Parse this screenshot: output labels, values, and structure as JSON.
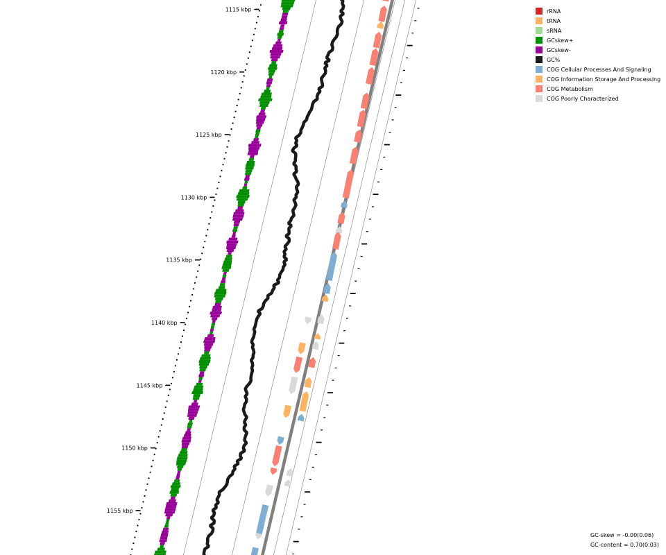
{
  "ticks": [
    {
      "label": "1115 kbp",
      "pos": 1115
    },
    {
      "label": "1120 kbp",
      "pos": 1120
    },
    {
      "label": "1125 kbp",
      "pos": 1125
    },
    {
      "label": "1130 kbp",
      "pos": 1130
    },
    {
      "label": "1135 kbp",
      "pos": 1135
    },
    {
      "label": "1140 kbp",
      "pos": 1140
    },
    {
      "label": "1145 kbp",
      "pos": 1145
    },
    {
      "label": "1150 kbp",
      "pos": 1150
    },
    {
      "label": "1155 kbp",
      "pos": 1155
    }
  ],
  "legend": [
    {
      "name": "rRNA",
      "color": "#d62728",
      "key": "rrna"
    },
    {
      "name": "tRNA",
      "color": "#fdb462",
      "key": "trna"
    },
    {
      "name": "sRNA",
      "color": "#a1d99b",
      "key": "srna"
    },
    {
      "name": "GCskew+",
      "color": "#009000",
      "key": "gcskew-pos"
    },
    {
      "name": "GCskew-",
      "color": "#990099",
      "key": "gcskew-neg"
    },
    {
      "name": "GC%",
      "color": "#1a1a1a",
      "key": "gc-content"
    },
    {
      "name": "COG Cellular Processes And Signaling",
      "color": "#7eaed3",
      "key": "cog-cellular"
    },
    {
      "name": "COG Information Storage And Processing",
      "color": "#fdb462",
      "key": "cog-information"
    },
    {
      "name": "COG Metabolism",
      "color": "#fa8072",
      "key": "cog-metabolism"
    },
    {
      "name": "COG Poorly Characterized",
      "color": "#d9d9d9",
      "key": "cog-poorly"
    }
  ],
  "stats": {
    "gc_skew": "GC-skew = -0.00(0.06)",
    "gc_content": "GC-content = 0.70(0.03)"
  },
  "features": {
    "outer": [
      {
        "t": 0.0,
        "len": 0.014,
        "cog": "cog-metabolism"
      },
      {
        "t": 0.022,
        "len": 0.028,
        "cog": "cog-metabolism"
      },
      {
        "t": 0.05,
        "len": 0.012,
        "cog": "cog-information"
      },
      {
        "t": 0.068,
        "len": 0.028,
        "cog": "cog-metabolism"
      },
      {
        "t": 0.097,
        "len": 0.03,
        "cog": "cog-metabolism"
      },
      {
        "t": 0.13,
        "len": 0.03,
        "cog": "cog-metabolism"
      },
      {
        "t": 0.175,
        "len": 0.028,
        "cog": "cog-metabolism"
      },
      {
        "t": 0.205,
        "len": 0.03,
        "cog": "cog-metabolism"
      },
      {
        "t": 0.24,
        "len": 0.022,
        "cog": "cog-metabolism"
      },
      {
        "t": 0.27,
        "len": 0.03,
        "cog": "cog-metabolism"
      },
      {
        "t": 0.31,
        "len": 0.05,
        "cog": "cog-metabolism"
      },
      {
        "t": 0.365,
        "len": 0.012,
        "cog": "cog-cellular"
      },
      {
        "t": 0.385,
        "len": 0.02,
        "cog": "cog-metabolism"
      },
      {
        "t": 0.41,
        "len": 0.012,
        "cog": "cog-poorly"
      },
      {
        "t": 0.42,
        "len": 0.03,
        "cog": "cog-metabolism"
      },
      {
        "t": 0.455,
        "len": 0.05,
        "cog": "cog-cellular"
      },
      {
        "t": 0.51,
        "len": 0.018,
        "cog": "cog-cellular"
      },
      {
        "t": 0.53,
        "len": 0.012,
        "cog": "cog-information"
      },
      {
        "t": 0.565,
        "len": 0.016,
        "cog": "cog-poorly"
      },
      {
        "t": 0.598,
        "len": 0.01,
        "cog": "cog-information"
      },
      {
        "t": 0.612,
        "len": 0.014,
        "cog": "cog-poorly"
      },
      {
        "t": 0.64,
        "len": 0.018,
        "cog": "cog-metabolism"
      },
      {
        "t": 0.675,
        "len": 0.018,
        "cog": "cog-information"
      },
      {
        "t": 0.7,
        "len": 0.035,
        "cog": "cog-information"
      },
      {
        "t": 0.74,
        "len": 0.012,
        "cog": "cog-cellular"
      },
      {
        "t": 0.835,
        "len": 0.014,
        "cog": "cog-poorly"
      },
      {
        "t": 0.855,
        "len": 0.012,
        "cog": "cog-poorly"
      }
    ],
    "inner": [
      {
        "t": 0.57,
        "len": 0.012,
        "cog": "cog-poorly"
      },
      {
        "t": 0.615,
        "len": 0.02,
        "cog": "cog-information"
      },
      {
        "t": 0.64,
        "len": 0.028,
        "cog": "cog-metabolism"
      },
      {
        "t": 0.675,
        "len": 0.03,
        "cog": "cog-poorly"
      },
      {
        "t": 0.725,
        "len": 0.022,
        "cog": "cog-information"
      },
      {
        "t": 0.78,
        "len": 0.014,
        "cog": "cog-cellular"
      },
      {
        "t": 0.796,
        "len": 0.036,
        "cog": "cog-metabolism"
      },
      {
        "t": 0.835,
        "len": 0.012,
        "cog": "cog-metabolism"
      },
      {
        "t": 0.865,
        "len": 0.02,
        "cog": "cog-poorly"
      },
      {
        "t": 0.9,
        "len": 0.06,
        "cog": "cog-cellular"
      },
      {
        "t": 0.95,
        "len": 0.01,
        "cog": "cog-poorly"
      },
      {
        "t": 0.975,
        "len": 0.02,
        "cog": "cog-cellular"
      }
    ]
  }
}
